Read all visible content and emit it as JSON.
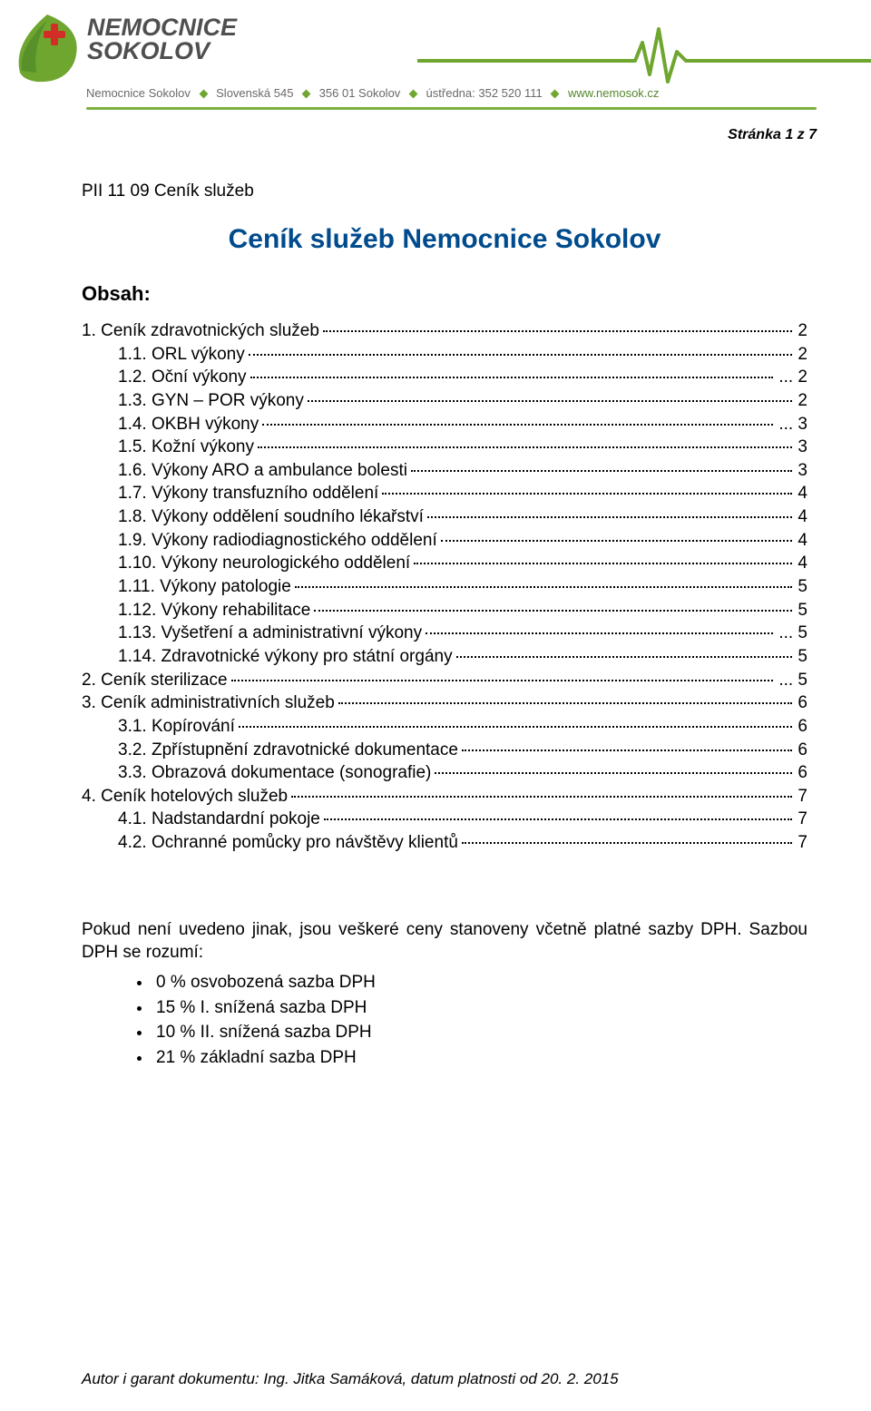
{
  "brand": {
    "line1": "NEMOCNICE",
    "line2": "SOKOLOV",
    "green": "#6fa62f",
    "red": "#d22e26",
    "grey": "#4f4f4f",
    "rule_green": "#7bb13e"
  },
  "contact": {
    "name": "Nemocnice Sokolov",
    "addr1": "Slovenská 545",
    "addr2": "356 01 Sokolov",
    "phone_label": "ústředna:",
    "phone": "352 520 111",
    "web": "www.nemosok.cz"
  },
  "page_number": "Stránka 1 z 7",
  "doc_code": "PII 11 09 Ceník služeb",
  "title": "Ceník služeb Nemocnice Sokolov",
  "obsah": "Obsah:",
  "toc": [
    {
      "num": "1.",
      "label": "Ceník zdravotnických služeb",
      "page": "2",
      "level": 1
    },
    {
      "num": "1.1.",
      "label": "ORL výkony",
      "page": "2",
      "level": 2
    },
    {
      "num": "1.2.",
      "label": "Oční výkony",
      "page": "2",
      "level": 2,
      "suffix": "..."
    },
    {
      "num": "1.3.",
      "label": "GYN – POR výkony",
      "page": "2",
      "level": 2
    },
    {
      "num": "1.4.",
      "label": "OKBH výkony",
      "page": "3",
      "level": 2,
      "suffix": "..."
    },
    {
      "num": "1.5.",
      "label": "Kožní výkony",
      "page": "3",
      "level": 2
    },
    {
      "num": "1.6.",
      "label": "Výkony ARO a ambulance bolesti",
      "page": "3",
      "level": 2
    },
    {
      "num": "1.7.",
      "label": "Výkony transfuzního oddělení",
      "page": "4",
      "level": 2
    },
    {
      "num": "1.8.",
      "label": "Výkony oddělení soudního lékařství",
      "page": "4",
      "level": 2
    },
    {
      "num": "1.9.",
      "label": "Výkony radiodiagnostického oddělení",
      "page": "4",
      "level": 2
    },
    {
      "num": "1.10.",
      "label": "Výkony neurologického oddělení",
      "page": "4",
      "level": 2
    },
    {
      "num": "1.11.",
      "label": "Výkony patologie",
      "page": "5",
      "level": 2
    },
    {
      "num": "1.12.",
      "label": "Výkony rehabilitace",
      "page": "5",
      "level": 2
    },
    {
      "num": "1.13.",
      "label": "Vyšetření a administrativní výkony",
      "page": "5",
      "level": 2,
      "suffix": "..."
    },
    {
      "num": "1.14.",
      "label": "Zdravotnické výkony pro státní orgány",
      "page": "5",
      "level": 2
    },
    {
      "num": "2.",
      "label": "Ceník sterilizace",
      "page": "5",
      "level": 1,
      "suffix": "..."
    },
    {
      "num": "3.",
      "label": "Ceník administrativních služeb",
      "page": "6",
      "level": 1
    },
    {
      "num": "3.1.",
      "label": "Kopírování",
      "page": "6",
      "level": 2
    },
    {
      "num": "3.2.",
      "label": "Zpřístupnění zdravotnické dokumentace",
      "page": "6",
      "level": 2
    },
    {
      "num": "3.3.",
      "label": "Obrazová dokumentace (sonografie)",
      "page": "6",
      "level": 2
    },
    {
      "num": "4.",
      "label": "Ceník hotelových služeb",
      "page": "7",
      "level": 1
    },
    {
      "num": "4.1.",
      "label": "Nadstandardní pokoje",
      "page": "7",
      "level": 2
    },
    {
      "num": "4.2.",
      "label": "Ochranné pomůcky pro návštěvy klientů",
      "page": "7",
      "level": 2
    }
  ],
  "note_para": "Pokud není uvedeno jinak, jsou veškeré ceny stanoveny včetně platné sazby DPH. Sazbou DPH se rozumí:",
  "bullets": [
    "0 % osvobozená sazba DPH",
    "15 % I. snížená sazba DPH",
    "10 % II. snížená sazba DPH",
    "21 % základní sazba DPH"
  ],
  "footer": "Autor i garant dokumentu: Ing. Jitka Samáková, datum platnosti od 20. 2. 2015"
}
